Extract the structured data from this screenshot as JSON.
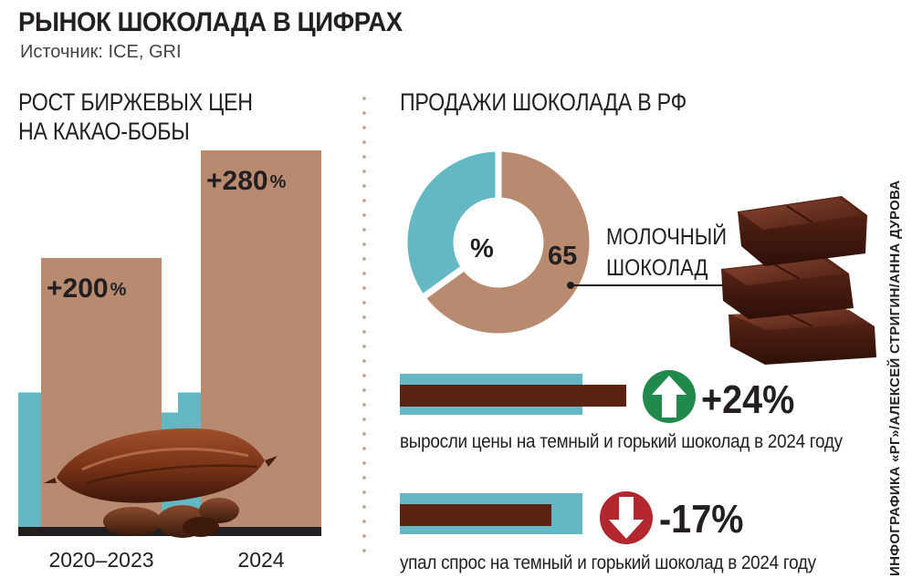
{
  "header": {
    "title": "РЫНОК ШОКОЛАДА В ЦИФРАХ",
    "source": "Источник:  ICE, GRI"
  },
  "credit": "ИНФОГРАФИКА «РГ»/АЛЕКСЕЙ СТРИГИН/АННА ДУРОВА",
  "colors": {
    "bar_brown": "#b88a70",
    "teal": "#63b8c4",
    "dark_brown": "#5a2313",
    "green_arrow": "#1f8a4c",
    "red_arrow": "#b3282e"
  },
  "chart_data": [
    {
      "type": "bar",
      "title": "РОСТ БИРЖЕВЫХ ЦЕН НА КАКАО-БОБЫ",
      "title_lines": [
        "РОСТ БИРЖЕВЫХ ЦЕН",
        "НА КАКАО-БОБЫ"
      ],
      "categories": [
        "2020–2023",
        "2024"
      ],
      "values": [
        200,
        280
      ],
      "value_labels": [
        "+200",
        "+280"
      ],
      "value_unit": "%",
      "ylim": [
        0,
        300
      ],
      "baseline_band": 100,
      "grid": false
    },
    {
      "type": "pie",
      "title": "ПРОДАЖИ ШОКОЛАДА В РФ",
      "center_label": "%",
      "slices": [
        {
          "value": 65,
          "label": "65",
          "name_lines": [
            "МОЛОЧНЫЙ",
            "ШОКОЛАД"
          ],
          "color": "#b88a70"
        },
        {
          "value": 35,
          "label": "",
          "color": "#63b8c4"
        }
      ]
    },
    {
      "type": "bar",
      "orientation": "horizontal",
      "title": "",
      "items": [
        {
          "direction": "up",
          "value": 24,
          "label": "+24%",
          "caption": "выросли цены на темный и горький шоколад в 2024 году"
        },
        {
          "direction": "down",
          "value": -17,
          "label": "-17%",
          "caption": "упал спрос на темный и горький шоколад в 2024 году"
        }
      ]
    }
  ]
}
